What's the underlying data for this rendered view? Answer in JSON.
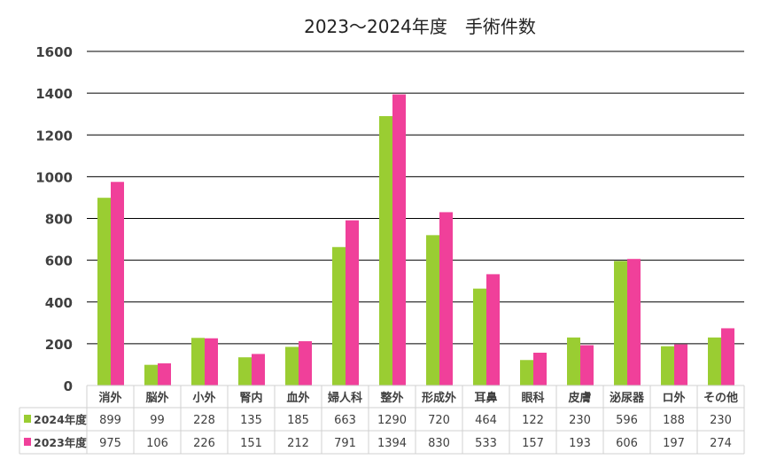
{
  "chart_data": {
    "type": "bar",
    "title": "2023〜2024年度　手術件数",
    "categories": [
      "消外",
      "脳外",
      "小外",
      "腎内",
      "血外",
      "婦人科",
      "整外",
      "形成外",
      "耳鼻",
      "眼科",
      "皮膚",
      "泌尿器",
      "ロ外",
      "その他"
    ],
    "series": [
      {
        "name": "2024年度",
        "color": "#9ACD32",
        "values": [
          899,
          99,
          228,
          135,
          185,
          663,
          1290,
          720,
          464,
          122,
          230,
          596,
          188,
          230
        ]
      },
      {
        "name": "2023年度",
        "color": "#F0409A",
        "values": [
          975,
          106,
          226,
          151,
          212,
          791,
          1394,
          830,
          533,
          157,
          193,
          606,
          197,
          274
        ]
      }
    ],
    "ylim": [
      0,
      1600
    ],
    "yticks": [
      0,
      200,
      400,
      600,
      800,
      1000,
      1200,
      1400,
      1600
    ],
    "grid": true,
    "legend": "data-table",
    "xlabel": "",
    "ylabel": ""
  }
}
